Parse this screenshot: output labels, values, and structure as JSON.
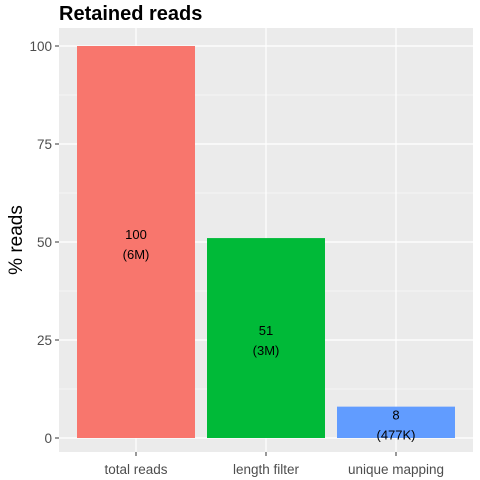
{
  "chart_data": {
    "type": "bar",
    "title": "Retained reads",
    "xlabel": "",
    "ylabel": "% reads",
    "ylim": [
      0,
      100
    ],
    "y_ticks": [
      "0",
      "25",
      "50",
      "75",
      "100"
    ],
    "grid": true,
    "legend": "none",
    "categories": [
      "total reads",
      "length filter",
      "unique mapping"
    ],
    "values": [
      100,
      51,
      8
    ],
    "value_labels": [
      "100",
      "51",
      "8"
    ],
    "count_labels": [
      "(6M)",
      "(3M)",
      "(477K)"
    ],
    "colors": [
      "#f8766d",
      "#00ba38",
      "#619cff"
    ],
    "panel_background": "#ebebeb",
    "grid_color": "#ffffff"
  }
}
